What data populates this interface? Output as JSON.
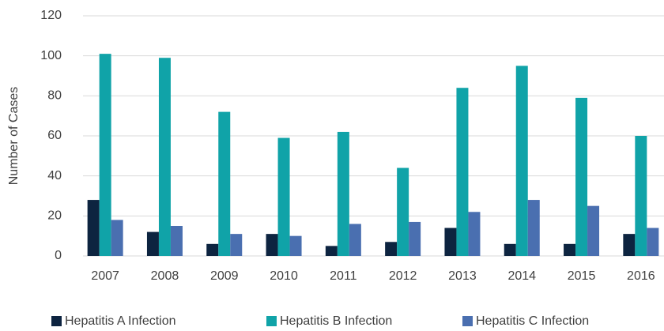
{
  "chart_data": {
    "type": "bar",
    "y_label": "Number of Cases",
    "categories": [
      "2007",
      "2008",
      "2009",
      "2010",
      "2011",
      "2012",
      "2013",
      "2014",
      "2015",
      "2016"
    ],
    "series": [
      {
        "name": "Hepatitis A Infection",
        "color": "#0d2440",
        "values": [
          28,
          12,
          6,
          11,
          5,
          7,
          14,
          6,
          6,
          11
        ]
      },
      {
        "name": "Hepatitis B Infection",
        "color": "#10a3a8",
        "values": [
          101,
          99,
          72,
          59,
          62,
          44,
          84,
          95,
          79,
          60
        ]
      },
      {
        "name": "Hepatitis C Infection",
        "color": "#4a6fb0",
        "values": [
          18,
          15,
          11,
          10,
          16,
          17,
          22,
          28,
          25,
          14
        ]
      }
    ],
    "ylim": [
      0,
      120
    ],
    "yticks": [
      0,
      20,
      40,
      60,
      80,
      100,
      120
    ],
    "grid": true,
    "legend": "bottom"
  }
}
